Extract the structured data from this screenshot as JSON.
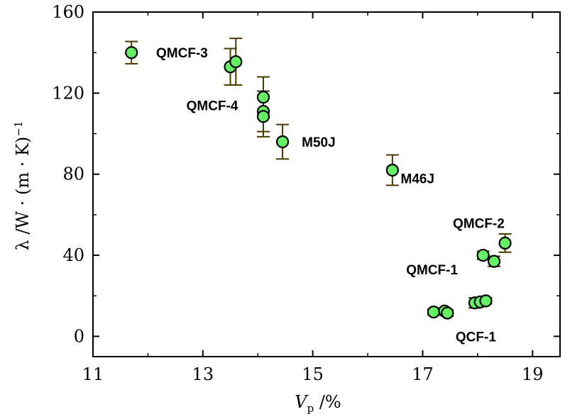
{
  "chart_data": {
    "type": "scatter",
    "xlabel_main": "V",
    "xlabel_sub": "p",
    "xlabel_unit": " /%",
    "ylabel": "λ /W · (m · K)",
    "ylabel_sup": "−1",
    "xlim": [
      11,
      19.5
    ],
    "ylim": [
      -10,
      160
    ],
    "x_ticks": [
      11,
      13,
      15,
      17,
      19
    ],
    "y_ticks": [
      0,
      40,
      80,
      120,
      160
    ],
    "grid": false,
    "marker_color": "#66f066",
    "errorbar_color": "#4a3a00",
    "points": [
      {
        "x": 11.7,
        "y": 140,
        "err": 5.5
      },
      {
        "x": 13.5,
        "y": 133,
        "err": 9
      },
      {
        "x": 13.6,
        "y": 135.5,
        "err": 11.5
      },
      {
        "x": 14.1,
        "y": 118,
        "err": 10
      },
      {
        "x": 14.1,
        "y": 111,
        "err": 10
      },
      {
        "x": 14.1,
        "y": 108.5,
        "err": 10
      },
      {
        "x": 14.45,
        "y": 96,
        "err": 8.5
      },
      {
        "x": 16.45,
        "y": 82,
        "err": 7.5
      },
      {
        "x": 18.5,
        "y": 46,
        "err": 4.5
      },
      {
        "x": 18.1,
        "y": 40,
        "err": 2
      },
      {
        "x": 18.3,
        "y": 37,
        "err": 2.5
      },
      {
        "x": 17.2,
        "y": 12,
        "err": 1.5
      },
      {
        "x": 17.4,
        "y": 12.5,
        "err": 1.5
      },
      {
        "x": 17.45,
        "y": 11.5,
        "err": 1.5
      },
      {
        "x": 17.95,
        "y": 16.5,
        "err": 2.5
      },
      {
        "x": 18.05,
        "y": 17,
        "err": 2
      },
      {
        "x": 18.15,
        "y": 17.5,
        "err": 1.5
      }
    ],
    "annotations": [
      {
        "text": "QMCF-3",
        "x": 12.15,
        "y": 140
      },
      {
        "text": "QMCF-4",
        "x": 12.7,
        "y": 114
      },
      {
        "text": "M50J",
        "x": 14.8,
        "y": 96
      },
      {
        "text": "M46J",
        "x": 16.6,
        "y": 78
      },
      {
        "text": "QMCF-2",
        "x": 17.55,
        "y": 56
      },
      {
        "text": "QMCF-1",
        "x": 16.7,
        "y": 33
      },
      {
        "text": "QCF-1",
        "x": 17.6,
        "y": 0
      }
    ]
  }
}
